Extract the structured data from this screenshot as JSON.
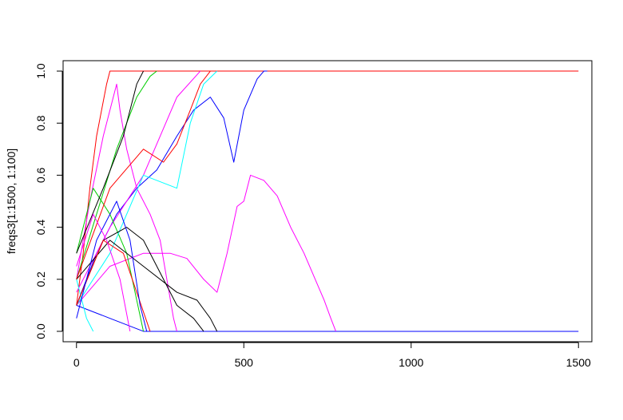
{
  "chart_data": {
    "type": "line",
    "title": "",
    "xlabel": "",
    "ylabel": "freqs3[1:1500, 1:100]",
    "xlim": [
      -40,
      1540
    ],
    "ylim": [
      -0.04,
      1.04
    ],
    "x_ticks": [
      0,
      500,
      1000,
      1500
    ],
    "x_tick_labels": [
      "0",
      "500",
      "1000",
      "1500"
    ],
    "y_ticks": [
      0.0,
      0.2,
      0.4,
      0.6,
      0.8,
      1.0
    ],
    "y_tick_labels": [
      "0.0",
      "0.2",
      "0.4",
      "0.6",
      "0.8",
      "1.0"
    ],
    "grid": false,
    "legend": "none",
    "palette": [
      "#000000",
      "#ff0000",
      "#00cd00",
      "#0000ff",
      "#00ffff",
      "#ff00ff"
    ],
    "series": [
      {
        "color": "#ff0000",
        "values": [
          [
            0,
            0.1
          ],
          [
            20,
            0.3
          ],
          [
            40,
            0.55
          ],
          [
            60,
            0.75
          ],
          [
            75,
            0.85
          ],
          [
            90,
            0.95
          ],
          [
            100,
            1.0
          ],
          [
            1500,
            1.0
          ]
        ]
      },
      {
        "color": "#0000ff",
        "values": [
          [
            0,
            0.1
          ],
          [
            60,
            0.3
          ],
          [
            120,
            0.45
          ],
          [
            180,
            0.55
          ],
          [
            240,
            0.62
          ],
          [
            300,
            0.75
          ],
          [
            350,
            0.85
          ],
          [
            400,
            0.9
          ],
          [
            440,
            0.82
          ],
          [
            470,
            0.65
          ],
          [
            500,
            0.85
          ],
          [
            540,
            0.97
          ],
          [
            560,
            1.0
          ],
          [
            570,
            1.0
          ]
        ]
      },
      {
        "color": "#0000ff",
        "values": [
          [
            0,
            0.1
          ],
          [
            100,
            0.05
          ],
          [
            200,
            0.0
          ],
          [
            1500,
            0.0
          ]
        ]
      },
      {
        "color": "#ff00ff",
        "values": [
          [
            0,
            0.1
          ],
          [
            100,
            0.25
          ],
          [
            200,
            0.3
          ],
          [
            280,
            0.3
          ],
          [
            330,
            0.28
          ],
          [
            380,
            0.2
          ],
          [
            420,
            0.15
          ],
          [
            450,
            0.3
          ],
          [
            480,
            0.48
          ],
          [
            500,
            0.5
          ],
          [
            520,
            0.6
          ],
          [
            560,
            0.58
          ],
          [
            600,
            0.52
          ],
          [
            640,
            0.4
          ],
          [
            680,
            0.3
          ],
          [
            720,
            0.18
          ],
          [
            740,
            0.12
          ],
          [
            760,
            0.05
          ],
          [
            775,
            0.0
          ]
        ]
      },
      {
        "color": "#ff00ff",
        "values": [
          [
            0,
            0.2
          ],
          [
            40,
            0.5
          ],
          [
            80,
            0.75
          ],
          [
            110,
            0.9
          ],
          [
            120,
            0.95
          ],
          [
            130,
            0.85
          ],
          [
            150,
            0.7
          ],
          [
            180,
            0.55
          ],
          [
            220,
            0.45
          ],
          [
            250,
            0.35
          ],
          [
            270,
            0.2
          ],
          [
            290,
            0.05
          ],
          [
            300,
            0.0
          ]
        ]
      },
      {
        "color": "#ff00ff",
        "values": [
          [
            0,
            0.15
          ],
          [
            100,
            0.4
          ],
          [
            200,
            0.6
          ],
          [
            300,
            0.9
          ],
          [
            370,
            1.0
          ]
        ]
      },
      {
        "color": "#00cd00",
        "values": [
          [
            0,
            0.2
          ],
          [
            60,
            0.45
          ],
          [
            120,
            0.7
          ],
          [
            180,
            0.9
          ],
          [
            220,
            0.98
          ],
          [
            240,
            1.0
          ]
        ]
      },
      {
        "color": "#00cd00",
        "values": [
          [
            0,
            0.3
          ],
          [
            50,
            0.55
          ],
          [
            100,
            0.45
          ],
          [
            150,
            0.3
          ],
          [
            200,
            0.0
          ]
        ]
      },
      {
        "color": "#00ffff",
        "values": [
          [
            0,
            0.1
          ],
          [
            100,
            0.3
          ],
          [
            200,
            0.6
          ],
          [
            300,
            0.55
          ],
          [
            340,
            0.8
          ],
          [
            380,
            0.95
          ],
          [
            420,
            1.0
          ]
        ]
      },
      {
        "color": "#00ffff",
        "values": [
          [
            0,
            0.2
          ],
          [
            30,
            0.05
          ],
          [
            50,
            0.0
          ]
        ]
      },
      {
        "color": "#000000",
        "values": [
          [
            0,
            0.3
          ],
          [
            80,
            0.55
          ],
          [
            140,
            0.75
          ],
          [
            180,
            0.95
          ],
          [
            200,
            1.0
          ]
        ]
      },
      {
        "color": "#000000",
        "values": [
          [
            0,
            0.1
          ],
          [
            80,
            0.35
          ],
          [
            150,
            0.4
          ],
          [
            200,
            0.35
          ],
          [
            260,
            0.2
          ],
          [
            300,
            0.1
          ],
          [
            350,
            0.05
          ],
          [
            380,
            0.0
          ]
        ]
      },
      {
        "color": "#000000",
        "values": [
          [
            0,
            0.2
          ],
          [
            100,
            0.35
          ],
          [
            200,
            0.25
          ],
          [
            300,
            0.15
          ],
          [
            360,
            0.12
          ],
          [
            400,
            0.05
          ],
          [
            420,
            0.0
          ]
        ]
      },
      {
        "color": "#ff0000",
        "values": [
          [
            0,
            0.2
          ],
          [
            100,
            0.55
          ],
          [
            200,
            0.7
          ],
          [
            260,
            0.65
          ],
          [
            300,
            0.72
          ],
          [
            340,
            0.85
          ],
          [
            370,
            0.95
          ],
          [
            400,
            1.0
          ]
        ]
      },
      {
        "color": "#ff0000",
        "values": [
          [
            0,
            0.1
          ],
          [
            80,
            0.35
          ],
          [
            140,
            0.3
          ],
          [
            180,
            0.15
          ],
          [
            220,
            0.0
          ]
        ]
      },
      {
        "color": "#0000ff",
        "values": [
          [
            0,
            0.05
          ],
          [
            60,
            0.35
          ],
          [
            120,
            0.5
          ],
          [
            160,
            0.35
          ],
          [
            190,
            0.1
          ],
          [
            210,
            0.0
          ]
        ]
      },
      {
        "color": "#ff00ff",
        "values": [
          [
            0,
            0.25
          ],
          [
            50,
            0.45
          ],
          [
            90,
            0.35
          ],
          [
            130,
            0.2
          ],
          [
            160,
            0.0
          ]
        ]
      }
    ]
  }
}
